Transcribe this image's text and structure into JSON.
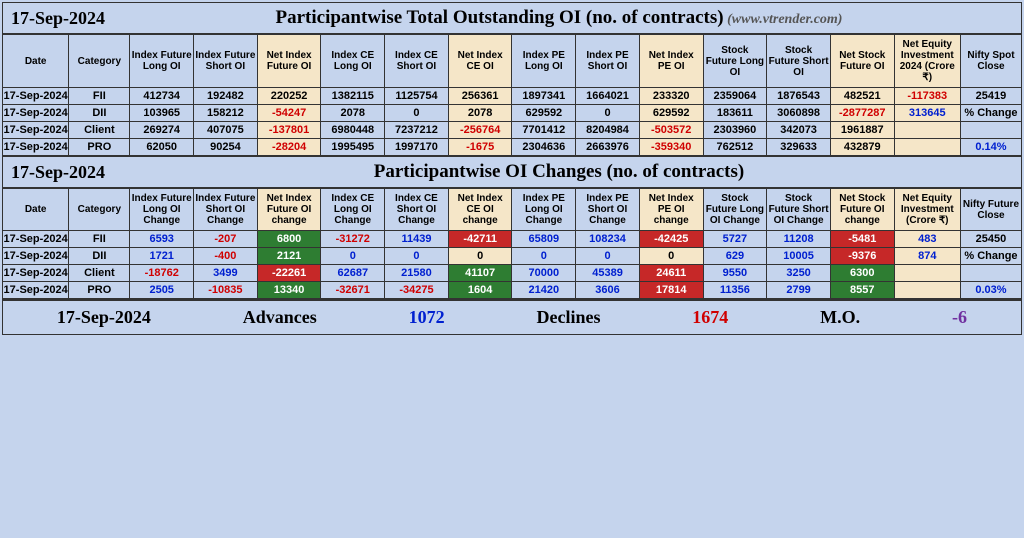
{
  "title1": {
    "date": "17-Sep-2024",
    "main": "Participantwise Total Outstanding OI (no. of contracts)",
    "src": "(www.vtrender.com)"
  },
  "headers1": [
    "Date",
    "Category",
    "Index Future Long OI",
    "Index Future Short OI",
    "Net Index Future OI",
    "Index CE Long OI",
    "Index CE Short OI",
    "Net Index CE OI",
    "Index PE Long OI",
    "Index PE Short OI",
    "Net Index PE OI",
    "Stock Future Long OI",
    "Stock Future Short OI",
    "Net Stock Future OI",
    "Net Equity Investment 2024 (Crore ₹)",
    "Nifty Spot Close"
  ],
  "netCols1": [
    4,
    7,
    10,
    13,
    14
  ],
  "rows1": [
    {
      "date": "17-Sep-2024",
      "cat": "FII",
      "c": [
        "412734",
        "192482",
        "220252",
        "1382115",
        "1125754",
        "256361",
        "1897341",
        "1664021",
        "233320",
        "2359064",
        "1876543",
        "482521",
        "-117383",
        "25419"
      ]
    },
    {
      "date": "17-Sep-2024",
      "cat": "DII",
      "c": [
        "103965",
        "158212",
        "-54247",
        "2078",
        "0",
        "2078",
        "629592",
        "0",
        "629592",
        "183611",
        "3060898",
        "-2877287",
        "313645",
        "% Change"
      ]
    },
    {
      "date": "17-Sep-2024",
      "cat": "Client",
      "c": [
        "269274",
        "407075",
        "-137801",
        "6980448",
        "7237212",
        "-256764",
        "7701412",
        "8204984",
        "-503572",
        "2303960",
        "342073",
        "1961887",
        "",
        ""
      ]
    },
    {
      "date": "17-Sep-2024",
      "cat": "PRO",
      "c": [
        "62050",
        "90254",
        "-28204",
        "1995495",
        "1997170",
        "-1675",
        "2304636",
        "2663976",
        "-359340",
        "762512",
        "329633",
        "432879",
        "",
        "0.14%"
      ]
    }
  ],
  "title2": {
    "date": "17-Sep-2024",
    "main": "Participantwise OI Changes (no. of contracts)"
  },
  "headers2": [
    "Date",
    "Category",
    "Index Future Long OI Change",
    "Index Future Short OI Change",
    "Net Index Future OI change",
    "Index CE Long OI Change",
    "Index CE Short OI Change",
    "Net Index CE OI change",
    "Index PE Long OI Change",
    "Index PE Short OI Change",
    "Net Index PE OI change",
    "Stock Future Long OI Change",
    "Stock Future Short OI Change",
    "Net Stock Future OI change",
    "Net Equity Investment (Crore ₹)",
    "Nifty Future Close"
  ],
  "rows2": [
    {
      "date": "17-Sep-2024",
      "cat": "FII",
      "c": [
        {
          "v": "6593",
          "cl": "pos"
        },
        {
          "v": "-207",
          "cl": "neg"
        },
        {
          "v": "6800",
          "bg": "chg-green"
        },
        {
          "v": "-31272",
          "cl": "neg"
        },
        {
          "v": "11439",
          "cl": "pos"
        },
        {
          "v": "-42711",
          "bg": "chg-red"
        },
        {
          "v": "65809",
          "cl": "pos"
        },
        {
          "v": "108234",
          "cl": "pos"
        },
        {
          "v": "-42425",
          "bg": "chg-red"
        },
        {
          "v": "5727",
          "cl": "pos"
        },
        {
          "v": "11208",
          "cl": "pos"
        },
        {
          "v": "-5481",
          "bg": "chg-red"
        },
        {
          "v": "483",
          "cl": "pos"
        },
        {
          "v": "25450"
        }
      ]
    },
    {
      "date": "17-Sep-2024",
      "cat": "DII",
      "c": [
        {
          "v": "1721",
          "cl": "pos"
        },
        {
          "v": "-400",
          "cl": "neg"
        },
        {
          "v": "2121",
          "bg": "chg-green"
        },
        {
          "v": "0",
          "cl": "pos"
        },
        {
          "v": "0",
          "cl": "pos"
        },
        {
          "v": "0",
          "bg": "chg-yellow"
        },
        {
          "v": "0",
          "cl": "pos"
        },
        {
          "v": "0",
          "cl": "pos"
        },
        {
          "v": "0",
          "bg": "chg-yellow"
        },
        {
          "v": "629",
          "cl": "pos"
        },
        {
          "v": "10005",
          "cl": "pos"
        },
        {
          "v": "-9376",
          "bg": "chg-red"
        },
        {
          "v": "874",
          "cl": "pos"
        },
        {
          "v": "% Change"
        }
      ]
    },
    {
      "date": "17-Sep-2024",
      "cat": "Client",
      "c": [
        {
          "v": "-18762",
          "cl": "neg"
        },
        {
          "v": "3499",
          "cl": "pos"
        },
        {
          "v": "-22261",
          "bg": "chg-red"
        },
        {
          "v": "62687",
          "cl": "pos"
        },
        {
          "v": "21580",
          "cl": "pos"
        },
        {
          "v": "41107",
          "bg": "chg-green"
        },
        {
          "v": "70000",
          "cl": "pos"
        },
        {
          "v": "45389",
          "cl": "pos"
        },
        {
          "v": "24611",
          "bg": "chg-red"
        },
        {
          "v": "9550",
          "cl": "pos"
        },
        {
          "v": "3250",
          "cl": "pos"
        },
        {
          "v": "6300",
          "bg": "chg-green"
        },
        {
          "v": ""
        },
        {
          "v": ""
        }
      ]
    },
    {
      "date": "17-Sep-2024",
      "cat": "PRO",
      "c": [
        {
          "v": "2505",
          "cl": "pos"
        },
        {
          "v": "-10835",
          "cl": "neg"
        },
        {
          "v": "13340",
          "bg": "chg-green"
        },
        {
          "v": "-32671",
          "cl": "neg"
        },
        {
          "v": "-34275",
          "cl": "neg"
        },
        {
          "v": "1604",
          "bg": "chg-green"
        },
        {
          "v": "21420",
          "cl": "pos"
        },
        {
          "v": "3606",
          "cl": "pos"
        },
        {
          "v": "17814",
          "bg": "chg-red"
        },
        {
          "v": "11356",
          "cl": "pos"
        },
        {
          "v": "2799",
          "cl": "pos"
        },
        {
          "v": "8557",
          "bg": "chg-green"
        },
        {
          "v": ""
        },
        {
          "v": "0.03%",
          "cl": "pos"
        }
      ]
    }
  ],
  "footer": {
    "date": "17-Sep-2024",
    "advLabel": "Advances",
    "adv": "1072",
    "decLabel": "Declines",
    "dec": "1674",
    "moLabel": "M.O.",
    "mo": "-6"
  },
  "colWidths": [
    "w50",
    "w46",
    "w48",
    "w48",
    "w48",
    "w48",
    "w48",
    "w48",
    "w48",
    "w48",
    "w48",
    "w48",
    "w48",
    "w48",
    "w50",
    "w46"
  ]
}
